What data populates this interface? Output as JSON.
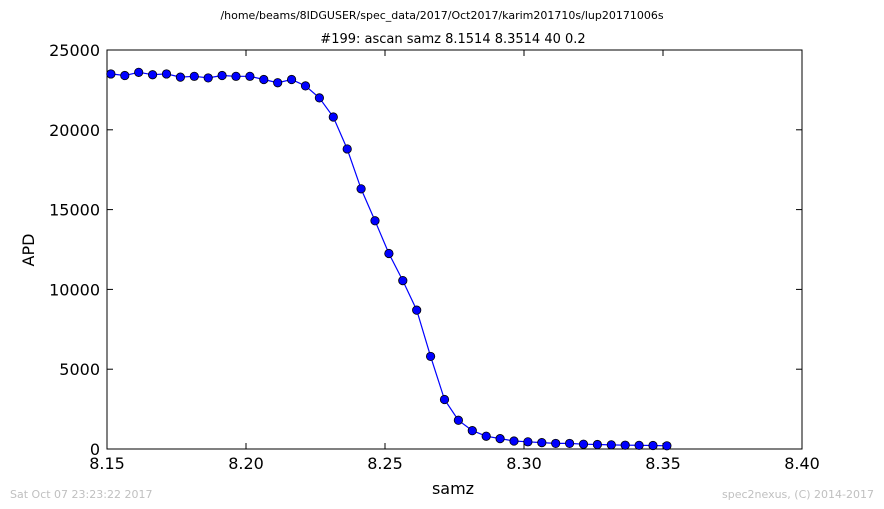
{
  "figure": {
    "supertitle": "/home/beams/8IDGUSER/spec_data/2017/Oct2017/karim201710s/lup20171006s",
    "timestamp": "Sat Oct 07 23:23:22 2017",
    "credit": "spec2nexus, (C) 2014-2017"
  },
  "chart_data": {
    "type": "line",
    "title": "#199: ascan  samz 8.1514 8.3514  40 0.2",
    "xlabel": "samz",
    "ylabel": "APD",
    "xlim": [
      8.15,
      8.4
    ],
    "ylim": [
      0,
      25000
    ],
    "xticks": [
      "8.15",
      "8.20",
      "8.25",
      "8.30",
      "8.35",
      "8.40"
    ],
    "yticks": [
      "0",
      "5000",
      "10000",
      "15000",
      "20000",
      "25000"
    ],
    "grid": false,
    "legend": "none",
    "color": "#0000ff",
    "marker": "circle",
    "series": [
      {
        "x": [
          8.1514,
          8.1564,
          8.1614,
          8.1664,
          8.1714,
          8.1764,
          8.1814,
          8.1864,
          8.1914,
          8.1964,
          8.2014,
          8.2064,
          8.2114,
          8.2164,
          8.2214,
          8.2264,
          8.2314,
          8.2364,
          8.2414,
          8.2464,
          8.2514,
          8.2564,
          8.2614,
          8.2664,
          8.2714,
          8.2764,
          8.2814,
          8.2864,
          8.2914,
          8.2964,
          8.3014,
          8.3064,
          8.3114,
          8.3164,
          8.3214,
          8.3264,
          8.3314,
          8.3364,
          8.3414,
          8.3464,
          8.3514
        ],
        "y": [
          23500,
          23400,
          23600,
          23450,
          23500,
          23300,
          23350,
          23250,
          23400,
          23350,
          23350,
          23150,
          22950,
          23150,
          22750,
          22000,
          20800,
          18800,
          16300,
          14300,
          12250,
          10550,
          8700,
          5800,
          3100,
          1800,
          1150,
          800,
          650,
          500,
          450,
          400,
          350,
          350,
          300,
          280,
          260,
          240,
          230,
          220,
          200
        ]
      }
    ]
  }
}
